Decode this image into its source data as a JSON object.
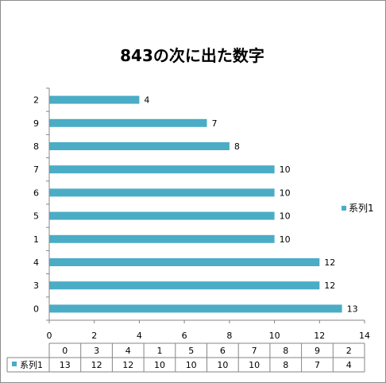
{
  "chart_data": {
    "type": "bar",
    "orientation": "horizontal",
    "title": "843の次に出た数字",
    "categories": [
      "0",
      "3",
      "4",
      "1",
      "5",
      "6",
      "7",
      "8",
      "9",
      "2"
    ],
    "series": [
      {
        "name": "系列1",
        "values": [
          13,
          12,
          12,
          10,
          10,
          10,
          10,
          8,
          7,
          4
        ]
      }
    ],
    "xlim": [
      0,
      14
    ],
    "xticks": [
      0,
      2,
      4,
      6,
      8,
      10,
      12,
      14
    ],
    "grid": false,
    "legend": "right",
    "data_table": true,
    "colors": {
      "bar": "#4BACC6",
      "axis": "#868686"
    }
  }
}
